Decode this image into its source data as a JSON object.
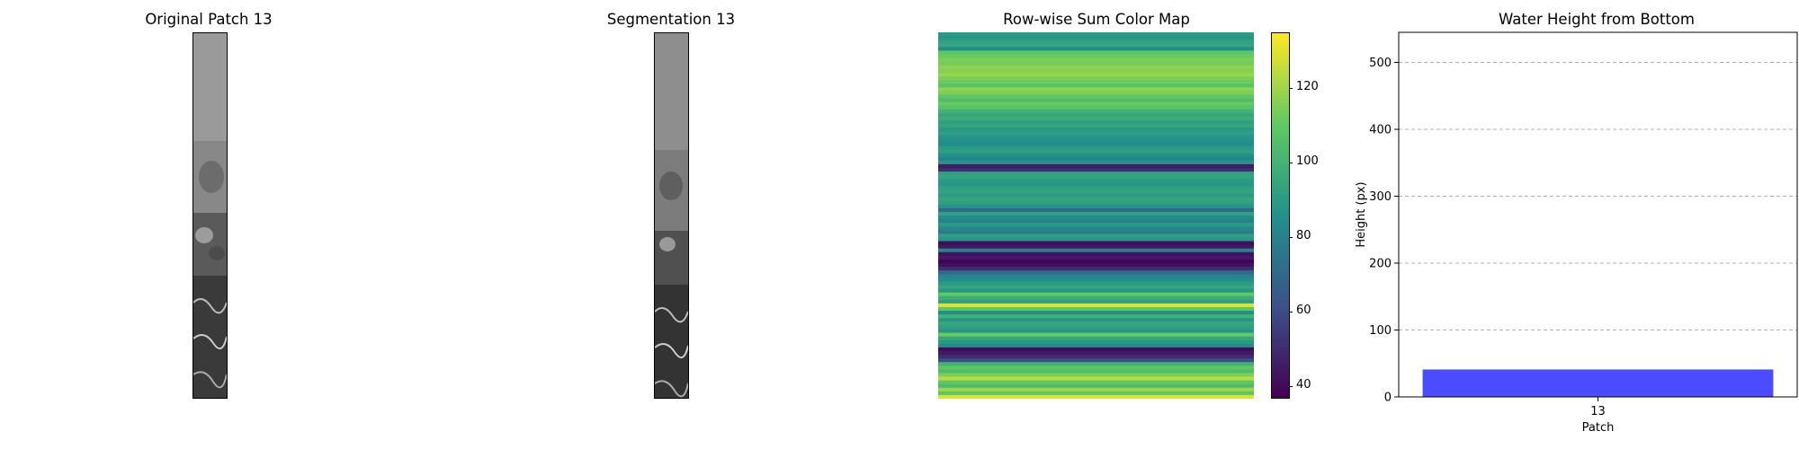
{
  "panels": {
    "original_title": "Original Patch 13",
    "segmentation_title": "Segmentation 13",
    "heatmap_title": "Row-wise Sum Color Map",
    "bar_title": "Water Height from Bottom"
  },
  "chart_data": [
    {
      "type": "heatmap",
      "title": "Row-wise Sum Color Map",
      "colormap": "viridis",
      "colorbar": {
        "min": 37,
        "max": 135,
        "ticks": [
          40,
          60,
          80,
          100,
          120
        ]
      },
      "row_values": [
        90,
        88,
        92,
        95,
        85,
        110,
        112,
        115,
        114,
        118,
        116,
        120,
        115,
        112,
        108,
        118,
        115,
        110,
        105,
        112,
        108,
        100,
        95,
        98,
        92,
        94,
        90,
        92,
        88,
        86,
        84,
        90,
        92,
        86,
        80,
        88,
        45,
        50,
        92,
        94,
        90,
        88,
        92,
        94,
        90,
        95,
        92,
        88,
        70,
        92,
        85,
        80,
        90,
        82,
        78,
        92,
        88,
        40,
        44,
        80,
        42,
        45,
        38,
        42,
        50,
        70,
        80,
        85,
        90,
        95,
        88,
        110,
        98,
        92,
        130,
        110,
        85,
        100,
        88,
        95,
        92,
        88,
        112,
        95,
        90,
        85,
        40,
        44,
        50,
        60,
        100,
        110,
        105,
        115,
        125,
        110,
        105,
        120,
        110,
        130
      ]
    },
    {
      "type": "bar",
      "title": "Water Height from Bottom",
      "categories": [
        "13"
      ],
      "values": [
        41
      ],
      "xlabel": "Patch",
      "ylabel": "Height (px)",
      "ylim": [
        0,
        545
      ],
      "yticks": [
        0,
        100,
        200,
        300,
        400,
        500
      ],
      "bar_color": "#4b4bff",
      "grid": "horizontal dashed"
    }
  ]
}
